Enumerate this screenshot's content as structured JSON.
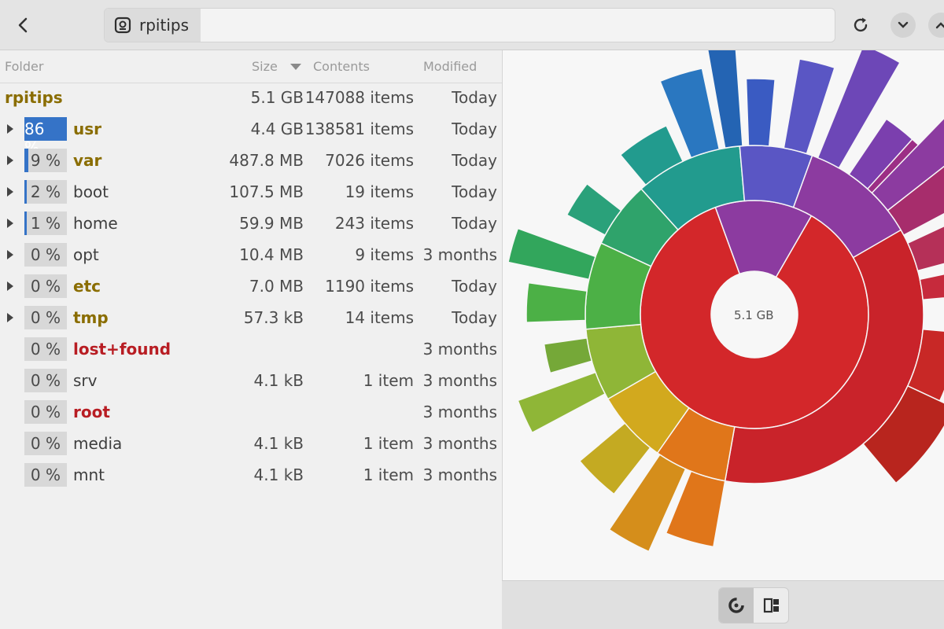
{
  "header": {
    "back_icon": "chevron-left-icon",
    "location": "rpitips",
    "location_icon": "drive-icon",
    "reload_icon": "reload-icon",
    "menu_icon": "chevron-down-icon"
  },
  "columns": {
    "folder": "Folder",
    "size": "Size",
    "contents": "Contents",
    "modified": "Modified"
  },
  "root_row": {
    "name": "rpitips",
    "size": "5.1 GB",
    "contents": "147088 items",
    "modified": "Today"
  },
  "rows": [
    {
      "pct": "86 %",
      "pct_value": 86,
      "name": "usr",
      "style": "dir",
      "size": "4.4 GB",
      "contents": "138581 items",
      "modified": "Today",
      "expandable": true,
      "highlight": true
    },
    {
      "pct": "9 %",
      "pct_value": 9,
      "name": "var",
      "style": "dir",
      "size": "487.8 MB",
      "contents": "7026 items",
      "modified": "Today",
      "expandable": true,
      "highlight": false
    },
    {
      "pct": "2 %",
      "pct_value": 2,
      "name": "boot",
      "style": "plain",
      "size": "107.5 MB",
      "contents": "19 items",
      "modified": "Today",
      "expandable": true,
      "highlight": false
    },
    {
      "pct": "1 %",
      "pct_value": 1,
      "name": "home",
      "style": "plain",
      "size": "59.9 MB",
      "contents": "243 items",
      "modified": "Today",
      "expandable": true,
      "highlight": false
    },
    {
      "pct": "0 %",
      "pct_value": 0,
      "name": "opt",
      "style": "plain",
      "size": "10.4 MB",
      "contents": "9 items",
      "modified": "3 months",
      "expandable": true,
      "highlight": false
    },
    {
      "pct": "0 %",
      "pct_value": 0,
      "name": "etc",
      "style": "dir",
      "size": "7.0 MB",
      "contents": "1190 items",
      "modified": "Today",
      "expandable": true,
      "highlight": false
    },
    {
      "pct": "0 %",
      "pct_value": 0,
      "name": "tmp",
      "style": "dir",
      "size": "57.3 kB",
      "contents": "14 items",
      "modified": "Today",
      "expandable": true,
      "highlight": false
    },
    {
      "pct": "0 %",
      "pct_value": 0,
      "name": "lost+found",
      "style": "red",
      "size": "",
      "contents": "",
      "modified": "3 months",
      "expandable": false,
      "highlight": false
    },
    {
      "pct": "0 %",
      "pct_value": 0,
      "name": "srv",
      "style": "plain",
      "size": "4.1 kB",
      "contents": "1 item",
      "modified": "3 months",
      "expandable": false,
      "highlight": false
    },
    {
      "pct": "0 %",
      "pct_value": 0,
      "name": "root",
      "style": "red",
      "size": "",
      "contents": "",
      "modified": "3 months",
      "expandable": false,
      "highlight": false
    },
    {
      "pct": "0 %",
      "pct_value": 0,
      "name": "media",
      "style": "plain",
      "size": "4.1 kB",
      "contents": "1 item",
      "modified": "3 months",
      "expandable": false,
      "highlight": false
    },
    {
      "pct": "0 %",
      "pct_value": 0,
      "name": "mnt",
      "style": "plain",
      "size": "4.1 kB",
      "contents": "1 item",
      "modified": "3 months",
      "expandable": false,
      "highlight": false
    }
  ],
  "chart": {
    "center_label": "5.1 GB"
  },
  "footer": {
    "ring_view_icon": "ring-chart-icon",
    "treemap_view_icon": "treemap-icon"
  },
  "colors": {
    "selection": "#3573c7",
    "dir_text": "#8a6d00",
    "unreadable_text": "#b81d23"
  },
  "chart_data": {
    "type": "pie",
    "title": "",
    "center_label": "5.1 GB",
    "unit": "percent of 5.1 GB",
    "slices": [
      {
        "label": "usr",
        "value": 86
      },
      {
        "label": "var",
        "value": 9
      },
      {
        "label": "boot",
        "value": 2
      },
      {
        "label": "home",
        "value": 1
      },
      {
        "label": "opt",
        "value": 0
      },
      {
        "label": "etc",
        "value": 0
      },
      {
        "label": "tmp",
        "value": 0
      },
      {
        "label": "lost+found",
        "value": 0
      },
      {
        "label": "srv",
        "value": 0
      },
      {
        "label": "root",
        "value": 0
      },
      {
        "label": "media",
        "value": 0
      },
      {
        "label": "mnt",
        "value": 0
      }
    ]
  }
}
